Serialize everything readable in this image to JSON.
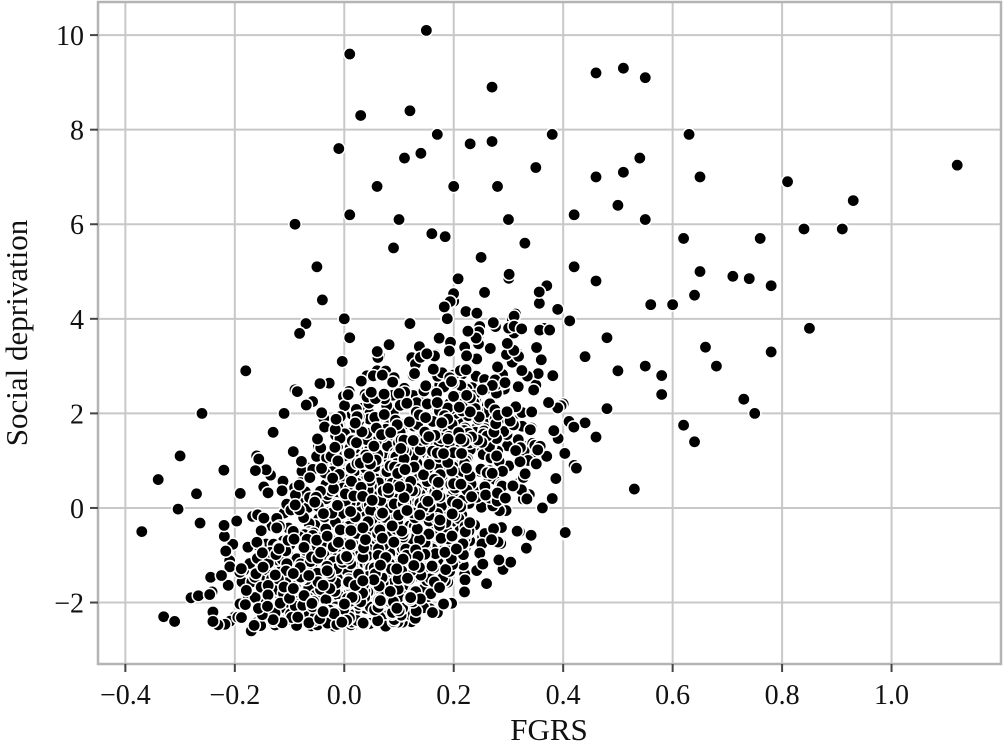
{
  "chart_data": {
    "type": "scatter",
    "xlabel": "FGRS",
    "ylabel": "Social deprivation",
    "xlim": [
      -0.45,
      1.2
    ],
    "ylim": [
      -3.3,
      10.7
    ],
    "xticks": [
      -0.4,
      -0.2,
      0.0,
      0.2,
      0.4,
      0.6,
      0.8,
      1.0
    ],
    "xtick_labels": [
      "−0.4",
      "−0.2",
      "0.0",
      "0.2",
      "0.4",
      "0.6",
      "0.8",
      "1.0"
    ],
    "yticks": [
      -2,
      0,
      2,
      4,
      6,
      8,
      10
    ],
    "ytick_labels": [
      "−2",
      "0",
      "2",
      "4",
      "6",
      "8",
      "10"
    ],
    "grid": true,
    "marker_color": "#000000",
    "marker_edge_color": "#ffffff",
    "points": [
      [
        0.15,
        10.1
      ],
      [
        0.01,
        9.6
      ],
      [
        0.46,
        9.2
      ],
      [
        0.51,
        9.3
      ],
      [
        0.55,
        9.1
      ],
      [
        0.27,
        8.9
      ],
      [
        0.03,
        8.3
      ],
      [
        0.12,
        8.4
      ],
      [
        0.38,
        7.9
      ],
      [
        0.63,
        7.9
      ],
      [
        0.17,
        7.9
      ],
      [
        0.27,
        7.75
      ],
      [
        0.23,
        7.7
      ],
      [
        -0.01,
        7.6
      ],
      [
        0.14,
        7.5
      ],
      [
        0.11,
        7.4
      ],
      [
        0.54,
        7.4
      ],
      [
        0.35,
        7.2
      ],
      [
        0.46,
        7.0
      ],
      [
        0.51,
        7.1
      ],
      [
        0.65,
        7.0
      ],
      [
        1.12,
        7.25
      ],
      [
        0.81,
        6.9
      ],
      [
        0.2,
        6.8
      ],
      [
        0.28,
        6.8
      ],
      [
        0.06,
        6.8
      ],
      [
        0.93,
        6.5
      ],
      [
        0.42,
        6.2
      ],
      [
        0.5,
        6.4
      ],
      [
        0.55,
        6.1
      ],
      [
        0.01,
        6.2
      ],
      [
        -0.09,
        6.0
      ],
      [
        0.84,
        5.9
      ],
      [
        0.91,
        5.9
      ],
      [
        0.1,
        6.1
      ],
      [
        0.3,
        6.1
      ],
      [
        0.76,
        5.7
      ],
      [
        0.62,
        5.7
      ],
      [
        0.65,
        5.0
      ],
      [
        0.71,
        4.9
      ],
      [
        0.74,
        4.85
      ],
      [
        0.78,
        4.7
      ],
      [
        0.64,
        4.5
      ],
      [
        0.6,
        4.3
      ],
      [
        0.85,
        3.8
      ],
      [
        0.78,
        3.3
      ],
      [
        0.66,
        3.4
      ],
      [
        0.68,
        3.0
      ],
      [
        0.58,
        2.8
      ],
      [
        0.73,
        2.3
      ],
      [
        0.75,
        2.0
      ],
      [
        0.62,
        1.75
      ],
      [
        0.64,
        1.4
      ],
      [
        0.53,
        0.4
      ],
      [
        -0.37,
        -0.5
      ],
      [
        -0.34,
        0.6
      ],
      [
        -0.33,
        -2.3
      ],
      [
        -0.31,
        -2.4
      ],
      [
        -0.17,
        -2.6
      ],
      [
        -0.26,
        2.0
      ],
      [
        -0.18,
        2.9
      ],
      [
        -0.11,
        2.0
      ],
      [
        -0.05,
        5.1
      ],
      [
        -0.04,
        4.4
      ],
      [
        -0.07,
        3.9
      ],
      [
        0.0,
        4.0
      ],
      [
        0.06,
        2.9
      ],
      [
        0.09,
        5.5
      ],
      [
        0.16,
        5.8
      ],
      [
        0.25,
        5.3
      ],
      [
        0.2,
        4.4
      ],
      [
        0.33,
        5.6
      ],
      [
        0.37,
        4.7
      ],
      [
        0.42,
        5.1
      ],
      [
        0.46,
        4.8
      ],
      [
        0.48,
        3.6
      ],
      [
        0.44,
        3.2
      ],
      [
        0.5,
        2.9
      ],
      [
        0.48,
        2.1
      ],
      [
        0.46,
        1.5
      ],
      [
        0.42,
        0.9
      ],
      [
        0.38,
        0.2
      ],
      [
        0.32,
        -0.5
      ],
      [
        0.29,
        -1.3
      ],
      [
        0.26,
        -1.6
      ],
      [
        0.22,
        -1.4
      ],
      [
        -0.28,
        -1.9
      ],
      [
        -0.24,
        -2.2
      ],
      [
        -0.2,
        -2.3
      ],
      [
        -0.14,
        -2.2
      ],
      [
        -0.08,
        -2.3
      ],
      [
        -0.02,
        -2.2
      ],
      [
        0.04,
        -2.0
      ],
      [
        0.1,
        -1.8
      ],
      [
        0.16,
        -1.7
      ],
      [
        0.01,
        3.6
      ],
      [
        0.12,
        3.9
      ],
      [
        0.22,
        3.4
      ],
      [
        0.31,
        3.7
      ],
      [
        0.39,
        4.2
      ],
      [
        0.56,
        4.3
      ],
      [
        0.58,
        2.4
      ],
      [
        0.55,
        3.0
      ],
      [
        0.35,
        2.6
      ],
      [
        0.4,
        2.2
      ],
      [
        0.44,
        1.8
      ],
      [
        -0.13,
        1.6
      ],
      [
        -0.09,
        2.5
      ],
      [
        -0.16,
        1.1
      ],
      [
        -0.22,
        0.8
      ],
      [
        -0.3,
        1.1
      ],
      [
        -0.27,
        0.3
      ]
    ]
  }
}
